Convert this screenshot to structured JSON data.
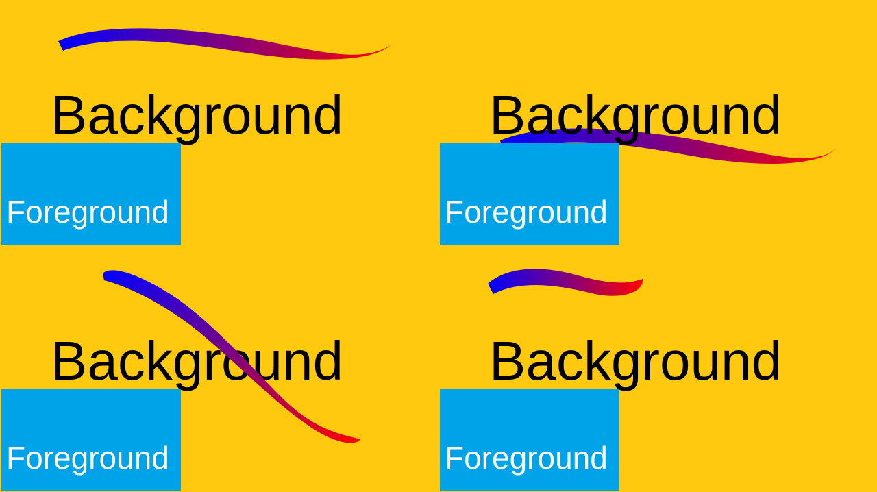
{
  "colors": {
    "page_background": "#FEC90E",
    "foreground_box": "#00A2E8",
    "foreground_text": "#FFFFFF",
    "background_text": "#000000",
    "stroke_start": "#0000FF",
    "stroke_end": "#FF0000"
  },
  "panels": [
    {
      "background_label": "Background",
      "foreground_label": "Foreground"
    },
    {
      "background_label": "Background",
      "foreground_label": "Foreground"
    },
    {
      "background_label": "Background",
      "foreground_label": "Foreground"
    },
    {
      "background_label": "Background",
      "foreground_label": "Foreground"
    }
  ]
}
